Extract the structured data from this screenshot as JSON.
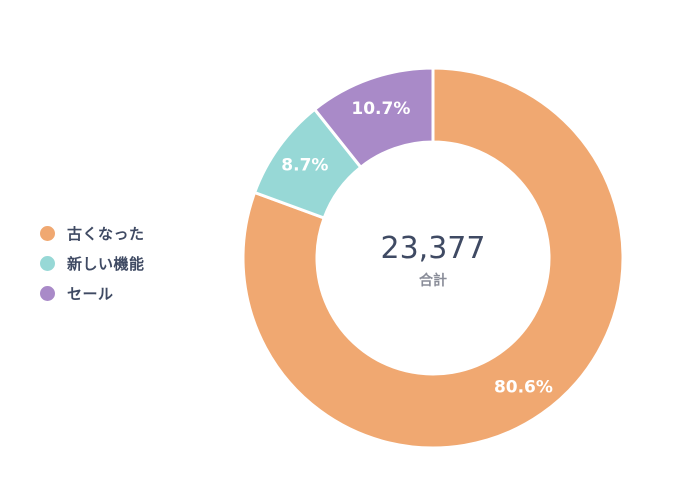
{
  "chart_data": {
    "type": "pie",
    "subtype": "donut",
    "legend_position": "left",
    "categories": [
      "古くなった",
      "新しい機能",
      "セール"
    ],
    "values": [
      80.6,
      8.7,
      10.7
    ],
    "value_labels": [
      "80.6%",
      "8.7%",
      "10.7%"
    ],
    "colors": [
      "#f0a871",
      "#97d8d6",
      "#a98ac8"
    ],
    "center": {
      "total": "23,377",
      "caption": "合計"
    }
  }
}
